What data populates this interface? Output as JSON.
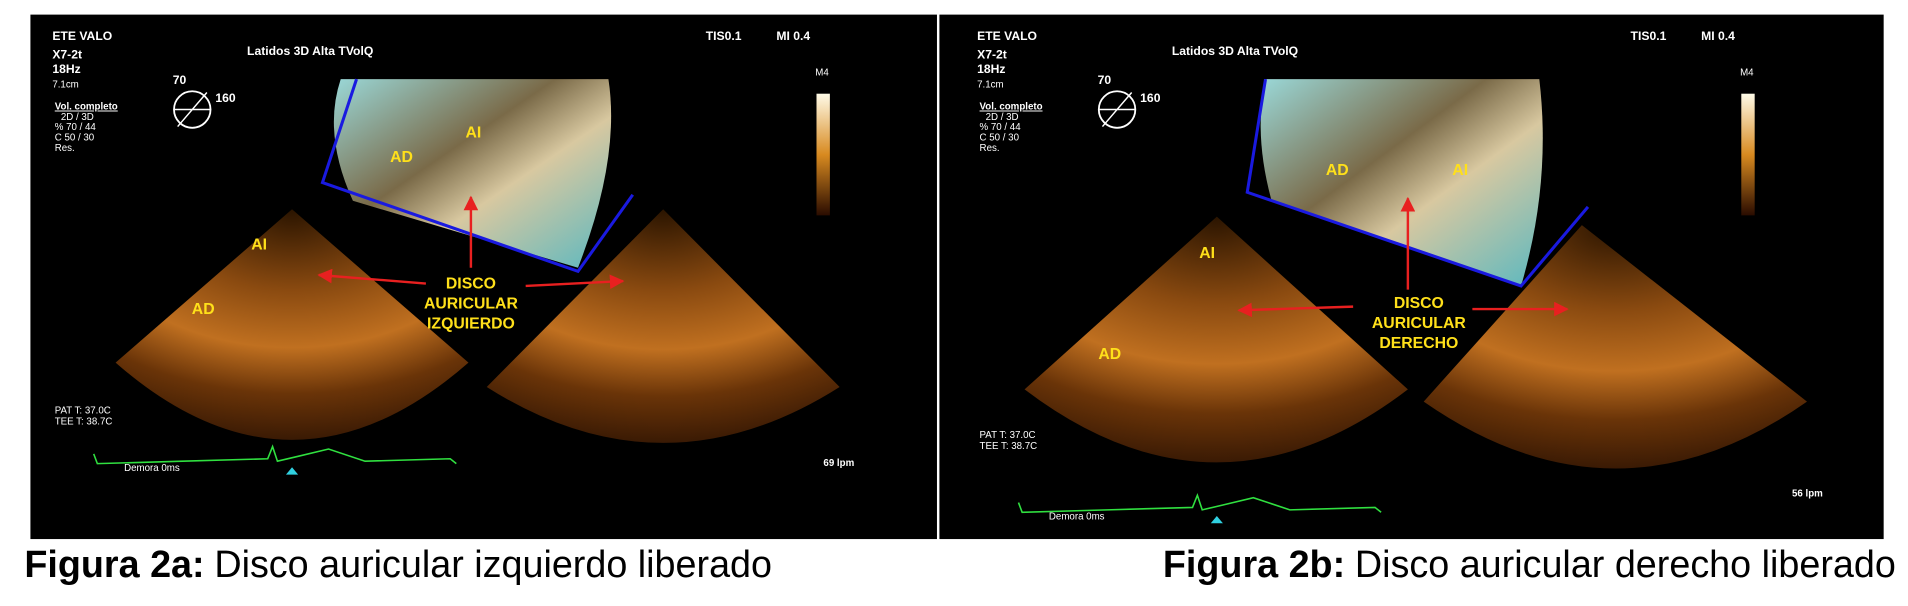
{
  "panels": [
    {
      "header": {
        "system": "ETE VALO",
        "probe": "X7-2t",
        "rate": "18Hz",
        "depth": "7.1cm",
        "mode": "Latidos 3D  Alta TVolQ",
        "tis": "TIS0.1",
        "mi": "MI 0.4",
        "map": "M4",
        "angle_a": "70",
        "angle_b": "160"
      },
      "settings": [
        "Vol. completo",
        "2D / 3D",
        "% 70 / 44",
        "C  50 / 30",
        "Res."
      ],
      "temps": [
        "PAT T: 37.0C",
        "TEE T: 38.7C"
      ],
      "delay": "Demora 0ms",
      "heart_rate": "69 lpm",
      "labels": [
        "AD",
        "AI",
        "AI",
        "AD"
      ],
      "annotation": [
        "DISCO",
        "AURICULAR",
        "IZQUIERDO"
      ],
      "caption": {
        "label": "Figura 2a:",
        "text": "Disco auricular izquierdo liberado"
      }
    },
    {
      "header": {
        "system": "ETE VALO",
        "probe": "X7-2t",
        "rate": "18Hz",
        "depth": "7.1cm",
        "mode": "Latidos 3D  Alta TVolQ",
        "tis": "TIS0.1",
        "mi": "MI 0.4",
        "map": "M4",
        "angle_a": "70",
        "angle_b": "160"
      },
      "settings": [
        "Vol. completo",
        "2D / 3D",
        "% 70 / 44",
        "C  50 / 30",
        "Res."
      ],
      "temps": [
        "PAT T: 37.0C",
        "TEE T: 38.7C"
      ],
      "delay": "Demora 0ms",
      "heart_rate": "56 lpm",
      "labels": [
        "AD",
        "AI",
        "AI",
        "AD"
      ],
      "annotation": [
        "DISCO",
        "AURICULAR",
        "DERECHO"
      ],
      "caption": {
        "label": "Figura 2b:",
        "text": "Disco auricular derecho liberado"
      }
    }
  ]
}
